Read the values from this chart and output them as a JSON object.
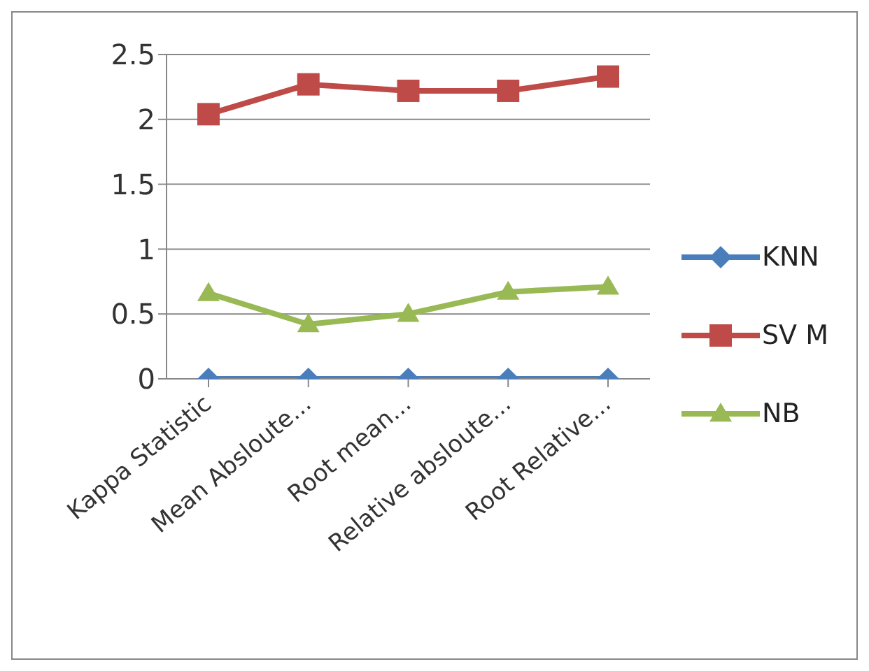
{
  "chart_data": {
    "type": "line",
    "categories": [
      "Kappa Statistic",
      "Mean Absloute...",
      "Root mean...",
      "Relative absloute...",
      "Root Relative..."
    ],
    "series": [
      {
        "name": "KNN",
        "color": "#4a7ebb",
        "marker": "diamond",
        "values": [
          0,
          0,
          0,
          0,
          0
        ]
      },
      {
        "name": "SV M",
        "color": "#be4b48",
        "marker": "square",
        "values": [
          2.04,
          2.27,
          2.22,
          2.22,
          2.33
        ]
      },
      {
        "name": "NB",
        "color": "#98b954",
        "marker": "triangle",
        "values": [
          0.66,
          0.42,
          0.5,
          0.67,
          0.71
        ]
      }
    ],
    "ylim": [
      0,
      2.5
    ],
    "yticks": [
      0,
      0.5,
      1,
      1.5,
      2,
      2.5
    ],
    "grid": "y",
    "legend": "right",
    "line_style": "solid"
  }
}
